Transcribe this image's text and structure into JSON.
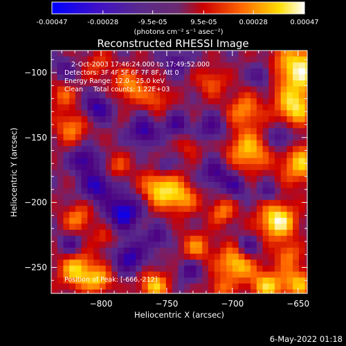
{
  "colorbar": {
    "ticks": [
      {
        "label": "-0.00047",
        "value": -0.00047
      },
      {
        "label": "-0.00028",
        "value": -0.00028
      },
      {
        "label": "-9.5e-05",
        "value": -9.5e-05
      },
      {
        "label": "9.5e-05",
        "value": 9.5e-05
      },
      {
        "label": "0.00028",
        "value": 0.00028
      },
      {
        "label": "0.00047",
        "value": 0.00047
      }
    ],
    "units": "(photons cm⁻² s⁻¹ asec⁻²)",
    "range": [
      -0.00047,
      0.00047
    ]
  },
  "footer": {
    "date_stamp": "6-May-2022 01:18"
  },
  "chart_data": {
    "type": "heatmap",
    "title": "Reconstructed RHESSI Image",
    "xlabel": "Heliocentric X (arcsec)",
    "ylabel": "Heliocentric Y (arcsec)",
    "xlim": [
      -838,
      -643
    ],
    "ylim": [
      -270,
      -83
    ],
    "xticks": [
      -800,
      -750,
      -700,
      -650
    ],
    "yticks": [
      -100,
      -150,
      -200,
      -250
    ],
    "annotations": [
      "2-Oct-2003 17:46:24.000 to 17:49:52.000",
      "Detectors: 3F 4F 5F 6F 7F 8F, Att 0",
      "Energy Range: 12.0 - 25.0 keV",
      "Clean     Total counts: 1.22E+03"
    ],
    "peak_label": "Position of Peak: [-666,-212]",
    "peak": {
      "x": -666,
      "y": -212
    },
    "colormap": [
      "#0000ff",
      "#4b0082",
      "#5a2a8c",
      "#cc0000",
      "#ff6600",
      "#ffdd00",
      "#ffffff"
    ],
    "blobs": [
      {
        "x": -668,
        "y": -212,
        "s": 10,
        "v": 1.0
      },
      {
        "x": -651,
        "y": -95,
        "s": 14,
        "v": 0.95
      },
      {
        "x": -655,
        "y": -125,
        "s": 10,
        "v": 0.8
      },
      {
        "x": -650,
        "y": -168,
        "s": 11,
        "v": 0.75
      },
      {
        "x": -690,
        "y": -158,
        "s": 11,
        "v": 0.75
      },
      {
        "x": -693,
        "y": -127,
        "s": 9,
        "v": 0.6
      },
      {
        "x": -757,
        "y": -187,
        "s": 10,
        "v": 0.85
      },
      {
        "x": -740,
        "y": -195,
        "s": 8,
        "v": 0.6
      },
      {
        "x": -762,
        "y": -262,
        "s": 8,
        "v": 0.75
      },
      {
        "x": -820,
        "y": -250,
        "s": 10,
        "v": 0.8
      },
      {
        "x": -803,
        "y": -258,
        "s": 7,
        "v": 0.6
      },
      {
        "x": -820,
        "y": -210,
        "s": 8,
        "v": 0.55
      },
      {
        "x": -780,
        "y": -108,
        "s": 9,
        "v": 0.6
      },
      {
        "x": -760,
        "y": -118,
        "s": 7,
        "v": 0.45
      },
      {
        "x": -825,
        "y": -140,
        "s": 9,
        "v": 0.55
      },
      {
        "x": -832,
        "y": -115,
        "s": 7,
        "v": 0.45
      },
      {
        "x": -718,
        "y": -105,
        "s": 8,
        "v": 0.45
      },
      {
        "x": -700,
        "y": -245,
        "s": 10,
        "v": 0.8
      },
      {
        "x": -676,
        "y": -262,
        "s": 9,
        "v": 0.75
      },
      {
        "x": -652,
        "y": -260,
        "s": 9,
        "v": 0.7
      },
      {
        "x": -730,
        "y": -232,
        "s": 8,
        "v": 0.55
      },
      {
        "x": -710,
        "y": -205,
        "s": 7,
        "v": 0.55
      },
      {
        "x": -790,
        "y": -170,
        "s": 7,
        "v": 0.4
      },
      {
        "x": -735,
        "y": -155,
        "s": 6,
        "v": 0.3
      },
      {
        "x": -800,
        "y": -225,
        "s": 6,
        "v": 0.35
      },
      {
        "x": -660,
        "y": -238,
        "s": 7,
        "v": 0.5
      },
      {
        "x": -712,
        "y": -265,
        "s": 6,
        "v": 0.45
      },
      {
        "x": -805,
        "y": -92,
        "s": 8,
        "v": 0.35
      },
      {
        "x": -785,
        "y": -205,
        "s": 9,
        "v": -0.9
      },
      {
        "x": -805,
        "y": -185,
        "s": 8,
        "v": -0.75
      },
      {
        "x": -815,
        "y": -165,
        "s": 7,
        "v": -0.7
      },
      {
        "x": -780,
        "y": -240,
        "s": 8,
        "v": -0.7
      },
      {
        "x": -760,
        "y": -225,
        "s": 6,
        "v": -0.5
      },
      {
        "x": -805,
        "y": -125,
        "s": 7,
        "v": -0.7
      },
      {
        "x": -770,
        "y": -143,
        "s": 7,
        "v": -0.7
      },
      {
        "x": -745,
        "y": -138,
        "s": 6,
        "v": -0.55
      },
      {
        "x": -715,
        "y": -175,
        "s": 7,
        "v": -0.6
      },
      {
        "x": -700,
        "y": -185,
        "s": 6,
        "v": -0.55
      },
      {
        "x": -718,
        "y": -140,
        "s": 7,
        "v": -0.5
      },
      {
        "x": -665,
        "y": -148,
        "s": 7,
        "v": -0.55
      },
      {
        "x": -680,
        "y": -100,
        "s": 6,
        "v": -0.5
      },
      {
        "x": -690,
        "y": -232,
        "s": 6,
        "v": -0.55
      },
      {
        "x": -735,
        "y": -250,
        "s": 6,
        "v": -0.5
      },
      {
        "x": -825,
        "y": -230,
        "s": 6,
        "v": -0.5
      },
      {
        "x": -745,
        "y": -90,
        "s": 6,
        "v": -0.45
      },
      {
        "x": -755,
        "y": -170,
        "s": 5,
        "v": -0.45
      },
      {
        "x": -675,
        "y": -190,
        "s": 5,
        "v": -0.45
      },
      {
        "x": -830,
        "y": -95,
        "s": 6,
        "v": -0.4
      }
    ]
  }
}
